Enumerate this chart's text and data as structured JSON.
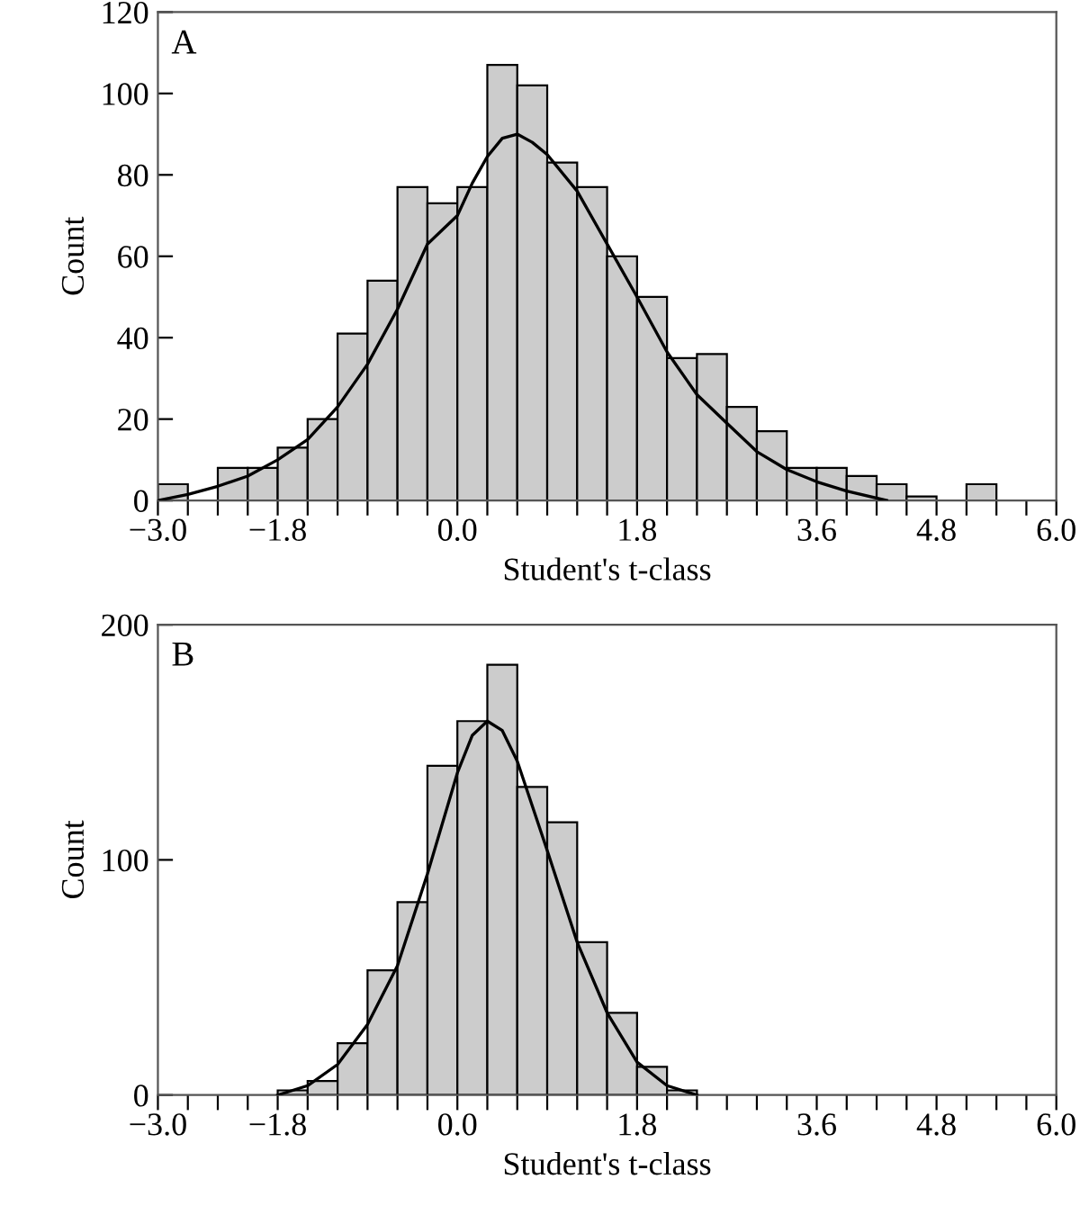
{
  "chart_data": [
    {
      "type": "histogram",
      "title": "A",
      "xlabel": "Student's t-class",
      "ylabel": "Count",
      "color": "#cccccc",
      "bins": [
        -3.0,
        -2.7,
        -2.4,
        -2.1,
        -1.8,
        -1.5,
        -1.2,
        -0.9,
        -0.6,
        -0.3,
        0.0,
        0.3,
        0.6,
        0.9,
        1.2,
        1.5,
        1.8,
        2.1,
        2.4,
        2.7,
        3.0,
        3.3,
        3.6,
        3.9,
        4.2,
        4.5,
        4.8,
        5.1,
        5.4,
        5.7,
        6.0
      ],
      "values": [
        4,
        0,
        8,
        8,
        13,
        20,
        41,
        54,
        77,
        73,
        77,
        107,
        102,
        83,
        77,
        60,
        50,
        35,
        36,
        23,
        17,
        8,
        8,
        6,
        4,
        1,
        0,
        4,
        0,
        0
      ],
      "series": [
        {
          "type": "line",
          "color": "#000000",
          "x": [
            -3.0,
            -2.7,
            -2.4,
            -2.1,
            -1.8,
            -1.5,
            -1.2,
            -0.9,
            -0.6,
            -0.3,
            0.0,
            0.15,
            0.3,
            0.45,
            0.6,
            0.75,
            0.9,
            1.2,
            1.5,
            1.8,
            2.1,
            2.4,
            2.7,
            3.0,
            3.3,
            3.6,
            3.9,
            4.3
          ],
          "values": [
            0,
            1.5,
            3.5,
            6,
            10,
            15,
            23,
            33.5,
            47,
            63,
            70,
            78,
            84.5,
            89,
            90,
            88,
            85,
            76,
            63,
            50,
            36.5,
            26,
            19,
            12,
            7.6,
            4.6,
            2.3,
            0
          ]
        }
      ],
      "xlim": [
        -3.0,
        6.0
      ],
      "ylim": [
        0,
        120
      ],
      "yticks": [
        0,
        20,
        40,
        60,
        80,
        100,
        120
      ],
      "xticks": [
        {
          "value": -3.0,
          "label": "−3.0"
        },
        {
          "value": -2.7,
          "label": null
        },
        {
          "value": -2.4,
          "label": null
        },
        {
          "value": -2.1,
          "label": null
        },
        {
          "value": -1.8,
          "label": "−1.8"
        },
        {
          "value": -1.5,
          "label": null
        },
        {
          "value": -1.2,
          "label": null
        },
        {
          "value": -0.9,
          "label": null
        },
        {
          "value": -0.6,
          "label": null
        },
        {
          "value": -0.3,
          "label": null
        },
        {
          "value": 0.0,
          "label": "0.0"
        },
        {
          "value": 0.3,
          "label": null
        },
        {
          "value": 0.6,
          "label": null
        },
        {
          "value": 0.9,
          "label": null
        },
        {
          "value": 1.2,
          "label": null
        },
        {
          "value": 1.5,
          "label": null
        },
        {
          "value": 1.8,
          "label": "1.8"
        },
        {
          "value": 2.1,
          "label": null
        },
        {
          "value": 2.4,
          "label": null
        },
        {
          "value": 2.7,
          "label": null
        },
        {
          "value": 3.0,
          "label": null
        },
        {
          "value": 3.3,
          "label": null
        },
        {
          "value": 3.6,
          "label": "3.6"
        },
        {
          "value": 3.9,
          "label": null
        },
        {
          "value": 4.2,
          "label": null
        },
        {
          "value": 4.5,
          "label": null
        },
        {
          "value": 4.8,
          "label": "4.8"
        },
        {
          "value": 5.1,
          "label": null
        },
        {
          "value": 5.4,
          "label": null
        },
        {
          "value": 5.7,
          "label": null
        },
        {
          "value": 6.0,
          "label": "6.0"
        }
      ],
      "grid": false,
      "legend": false
    },
    {
      "type": "histogram",
      "title": "B",
      "xlabel": "Student's t-class",
      "ylabel": "Count",
      "color": "#cccccc",
      "bins": [
        -3.0,
        -2.7,
        -2.4,
        -2.1,
        -1.8,
        -1.5,
        -1.2,
        -0.9,
        -0.6,
        -0.3,
        0.0,
        0.3,
        0.6,
        0.9,
        1.2,
        1.5,
        1.8,
        2.1,
        2.4,
        2.7,
        3.0,
        3.3,
        3.6,
        3.9,
        4.2,
        4.5,
        4.8,
        5.1,
        5.4,
        5.7,
        6.0
      ],
      "values": [
        0,
        0,
        0,
        0,
        2,
        6,
        22,
        53,
        82,
        140,
        159,
        183,
        131,
        116,
        65,
        35,
        12,
        2,
        0,
        0,
        0,
        0,
        0,
        0,
        0,
        0,
        0,
        0,
        0,
        0
      ],
      "series": [
        {
          "type": "line",
          "color": "#000000",
          "x": [
            -1.8,
            -1.5,
            -1.2,
            -0.9,
            -0.6,
            -0.3,
            0.0,
            0.15,
            0.3,
            0.45,
            0.6,
            0.9,
            1.2,
            1.5,
            1.8,
            2.1,
            2.4
          ],
          "values": [
            0,
            4,
            13,
            30,
            55,
            94,
            137,
            153,
            159,
            155,
            142,
            104,
            65,
            35,
            14,
            4,
            0
          ]
        }
      ],
      "xlim": [
        -3.0,
        6.0
      ],
      "ylim": [
        0,
        200
      ],
      "yticks": [
        0,
        100,
        200
      ],
      "xticks": [
        {
          "value": -3.0,
          "label": "−3.0"
        },
        {
          "value": -2.7,
          "label": null
        },
        {
          "value": -2.4,
          "label": null
        },
        {
          "value": -2.1,
          "label": null
        },
        {
          "value": -1.8,
          "label": "−1.8"
        },
        {
          "value": -1.5,
          "label": null
        },
        {
          "value": -1.2,
          "label": null
        },
        {
          "value": -0.9,
          "label": null
        },
        {
          "value": -0.6,
          "label": null
        },
        {
          "value": -0.3,
          "label": null
        },
        {
          "value": 0.0,
          "label": "0.0"
        },
        {
          "value": 0.3,
          "label": null
        },
        {
          "value": 0.6,
          "label": null
        },
        {
          "value": 0.9,
          "label": null
        },
        {
          "value": 1.2,
          "label": null
        },
        {
          "value": 1.5,
          "label": null
        },
        {
          "value": 1.8,
          "label": "1.8"
        },
        {
          "value": 2.1,
          "label": null
        },
        {
          "value": 2.4,
          "label": null
        },
        {
          "value": 2.7,
          "label": null
        },
        {
          "value": 3.0,
          "label": null
        },
        {
          "value": 3.3,
          "label": null
        },
        {
          "value": 3.6,
          "label": "3.6"
        },
        {
          "value": 3.9,
          "label": null
        },
        {
          "value": 4.2,
          "label": null
        },
        {
          "value": 4.5,
          "label": null
        },
        {
          "value": 4.8,
          "label": "4.8"
        },
        {
          "value": 5.1,
          "label": null
        },
        {
          "value": 5.4,
          "label": null
        },
        {
          "value": 5.7,
          "label": null
        },
        {
          "value": 6.0,
          "label": "6.0"
        }
      ],
      "grid": false,
      "legend": false
    }
  ]
}
